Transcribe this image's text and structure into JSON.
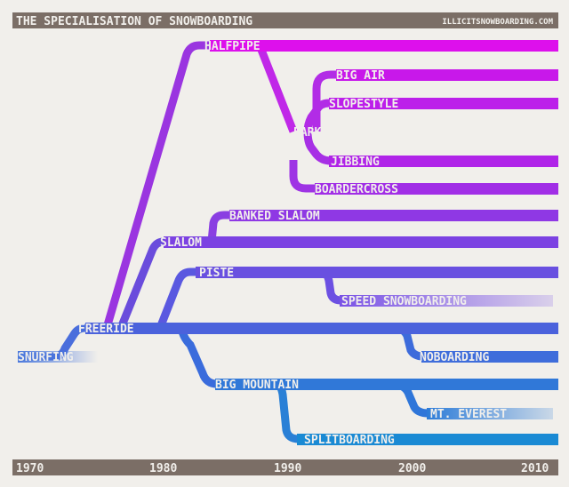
{
  "title": "THE SPECIALISATION OF SNOWBOARDING",
  "site": "ILLICITSNOWBOARDING.COM",
  "colors": {
    "brown": "#7b6e66",
    "background": "#f1efeb"
  },
  "years": [
    "1970",
    "1980",
    "1990",
    "2000",
    "2010"
  ],
  "disciplines": [
    {
      "id": "snurfing",
      "label": "SNURFING"
    },
    {
      "id": "freeride",
      "label": "FREERIDE"
    },
    {
      "id": "slalom",
      "label": "SLALOM"
    },
    {
      "id": "halfpipe",
      "label": "HALFPIPE"
    },
    {
      "id": "banked-slalom",
      "label": "BANKED SLALOM"
    },
    {
      "id": "piste",
      "label": "PISTE"
    },
    {
      "id": "big-mountain",
      "label": "BIG MOUNTAIN"
    },
    {
      "id": "park",
      "label": "PARK"
    },
    {
      "id": "boardercross",
      "label": "BOARDERCROSS"
    },
    {
      "id": "big-air",
      "label": "BIG AIR"
    },
    {
      "id": "slopestyle",
      "label": "SLOPESTYLE"
    },
    {
      "id": "jibbing",
      "label": "JIBBING"
    },
    {
      "id": "speed-snowboarding",
      "label": "SPEED SNOWBOARDING"
    },
    {
      "id": "noboarding",
      "label": "NOBOARDING"
    },
    {
      "id": "mt-everest",
      "label": "MT. EVEREST"
    },
    {
      "id": "splitboarding",
      "label": "SPLITBOARDING"
    }
  ]
}
